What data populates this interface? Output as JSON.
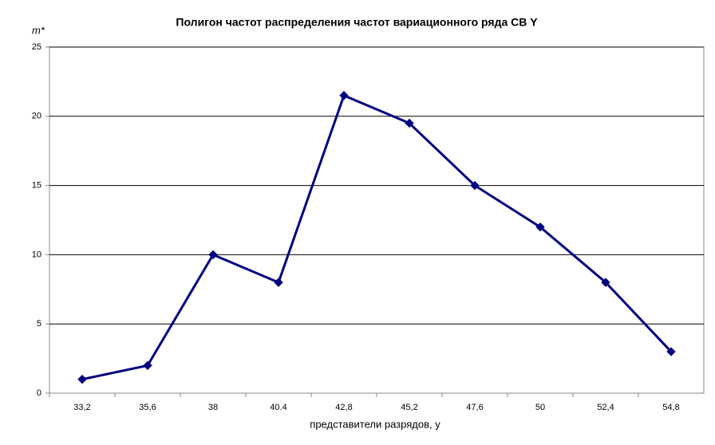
{
  "chart_data": {
    "type": "line",
    "title": "Полигон частот  распределения частот вариационного ряда  СВ Y",
    "y_label": "m*",
    "x_label": "представители разрядов, y",
    "categories": [
      "33,2",
      "35,6",
      "38",
      "40.4",
      "42,8",
      "45,2",
      "47,6",
      "50",
      "52,4",
      "54,8"
    ],
    "values": [
      1,
      2,
      10,
      8,
      21.5,
      19.5,
      15,
      12,
      8,
      3
    ],
    "color": "#000080",
    "ylim": [
      0,
      25
    ],
    "yticks": [
      0,
      5,
      10,
      15,
      20,
      25
    ],
    "grid": true
  }
}
